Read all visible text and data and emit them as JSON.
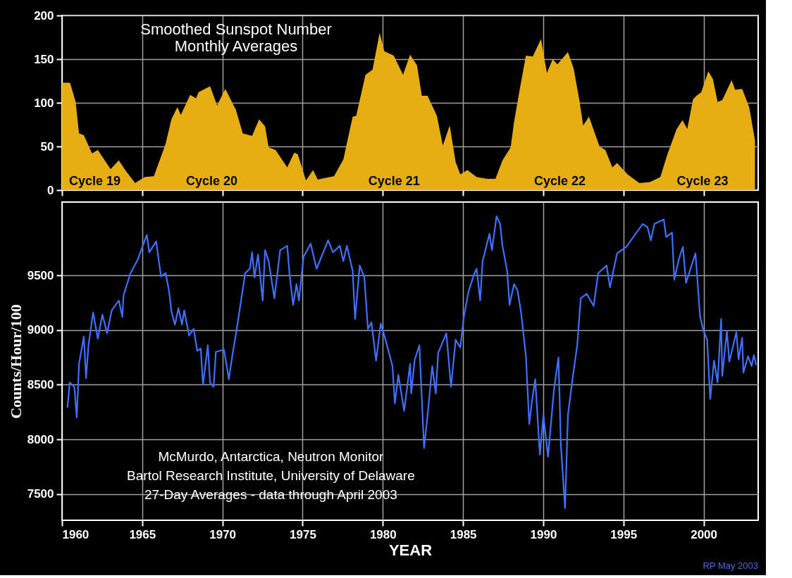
{
  "chart_data": [
    {
      "type": "area",
      "title": "Smoothed Sunspot Number\nMonthly Averages",
      "x": [
        1960.0,
        1960.5,
        1960.85,
        1961.06,
        1961.36,
        1961.87,
        1962.23,
        1963.03,
        1963.54,
        1963.98,
        1964.56,
        1965.15,
        1965.73,
        1966.46,
        1966.82,
        1967.19,
        1967.41,
        1967.99,
        1968.36,
        1968.51,
        1969.23,
        1969.67,
        1970.18,
        1970.84,
        1971.27,
        1971.85,
        1972.29,
        1972.66,
        1972.88,
        1973.31,
        1974.04,
        1974.48,
        1974.7,
        1975.21,
        1975.65,
        1975.94,
        1976.96,
        1977.54,
        1978.12,
        1978.34,
        1978.92,
        1979.36,
        1979.8,
        1980.09,
        1980.68,
        1981.26,
        1981.7,
        1982.13,
        1982.43,
        1982.79,
        1983.37,
        1983.74,
        1984.17,
        1984.54,
        1984.83,
        1985.27,
        1985.85,
        1986.51,
        1987.02,
        1987.46,
        1987.97,
        1988.18,
        1988.55,
        1988.92,
        1989.35,
        1989.86,
        1990.23,
        1990.59,
        1990.88,
        1991.54,
        1991.9,
        1992.27,
        1992.49,
        1992.85,
        1993.51,
        1993.87,
        1994.31,
        1994.6,
        1995.26,
        1995.99,
        1996.64,
        1997.3,
        1997.74,
        1998.32,
        1998.68,
        1998.98,
        1999.34,
        1999.56,
        1999.85,
        2000.29,
        2000.58,
        2000.87,
        2001.16,
        2001.75,
        2001.96,
        2002.4,
        2002.84,
        2003.2
      ],
      "series": [
        {
          "color": "#e6ae12",
          "values": [
            123,
            123,
            101,
            65,
            63,
            42,
            46,
            24,
            34,
            22,
            8,
            15,
            16,
            53,
            81,
            95,
            86,
            109,
            105,
            112,
            119,
            97,
            116,
            92,
            65,
            62,
            81,
            73,
            49,
            46,
            26,
            43,
            41,
            11,
            23,
            12,
            16,
            35,
            84,
            85,
            132,
            138,
            180,
            159,
            154,
            132,
            155,
            143,
            108,
            108,
            85,
            51,
            74,
            32,
            18,
            23,
            15,
            13,
            13,
            34,
            49,
            78,
            117,
            154,
            153,
            173,
            134,
            150,
            144,
            158,
            139,
            101,
            74,
            84,
            50,
            46,
            26,
            31,
            18,
            8,
            9,
            15,
            41,
            70,
            80,
            70,
            104,
            108,
            112,
            136,
            127,
            101,
            103,
            126,
            115,
            116,
            95,
            57
          ]
        }
      ],
      "annotations": [
        "Cycle 19",
        "Cycle 20",
        "Cycle 21",
        "Cycle 22",
        "Cycle 23"
      ],
      "xlim": [
        1960,
        2003.4
      ],
      "ylim": [
        0,
        200
      ],
      "xticks": [
        1960,
        1965,
        1970,
        1975,
        1980,
        1985,
        1990,
        1995,
        2000
      ],
      "yticks": [
        0,
        50,
        100,
        150,
        200
      ],
      "grid": true,
      "tick_labels": "y"
    },
    {
      "type": "line",
      "x": [
        1960.34,
        1960.48,
        1960.77,
        1960.92,
        1961.06,
        1961.36,
        1961.5,
        1961.65,
        1961.94,
        1962.23,
        1962.52,
        1962.81,
        1963.1,
        1963.54,
        1963.76,
        1963.84,
        1964.27,
        1964.71,
        1965.29,
        1965.44,
        1965.87,
        1966.17,
        1966.46,
        1966.68,
        1966.82,
        1967.04,
        1967.26,
        1967.48,
        1967.62,
        1967.92,
        1968.21,
        1968.43,
        1968.65,
        1968.79,
        1969.09,
        1969.23,
        1969.45,
        1969.59,
        1970.1,
        1970.4,
        1970.62,
        1970.84,
        1971.05,
        1971.42,
        1971.71,
        1971.85,
        1972.0,
        1972.22,
        1972.51,
        1972.66,
        1972.88,
        1973.24,
        1973.6,
        1974.04,
        1974.19,
        1974.41,
        1974.62,
        1974.77,
        1975.06,
        1975.5,
        1975.87,
        1976.59,
        1976.89,
        1977.32,
        1977.54,
        1977.76,
        1978.12,
        1978.27,
        1978.56,
        1978.85,
        1979.07,
        1979.29,
        1979.58,
        1979.87,
        1980.17,
        1980.6,
        1980.75,
        1980.97,
        1981.33,
        1981.7,
        1981.77,
        1981.99,
        1982.28,
        1982.57,
        1982.79,
        1983.08,
        1983.3,
        1983.45,
        1983.96,
        1984.25,
        1984.54,
        1984.83,
        1985.05,
        1985.34,
        1985.71,
        1985.85,
        1986.07,
        1986.22,
        1986.65,
        1986.8,
        1987.09,
        1987.31,
        1987.46,
        1987.75,
        1987.9,
        1988.18,
        1988.4,
        1988.62,
        1988.92,
        1989.13,
        1989.28,
        1989.5,
        1989.79,
        1990.01,
        1990.3,
        1990.66,
        1990.95,
        1991.1,
        1991.36,
        1991.54,
        1991.83,
        1992.12,
        1992.34,
        1992.71,
        1993.14,
        1993.43,
        1993.95,
        1994.16,
        1994.6,
        1995.18,
        1995.62,
        1996.2,
        1996.5,
        1996.71,
        1996.93,
        1997.52,
        1997.66,
        1998.03,
        1998.17,
        1998.46,
        1998.71,
        1998.9,
        1999.49,
        1999.78,
        2000.0,
        2000.22,
        2000.41,
        2000.65,
        2000.87,
        2001.09,
        2001.16,
        2001.45,
        2001.6,
        2002.04,
        2002.18,
        2002.4,
        2002.48,
        2002.77,
        2002.99,
        2003.13,
        2003.28
      ],
      "series": [
        {
          "color": "#3f6fff",
          "values": [
            8290,
            8520,
            8480,
            8200,
            8690,
            8940,
            8560,
            8860,
            9160,
            8920,
            9140,
            8970,
            9180,
            9270,
            9120,
            9320,
            9520,
            9640,
            9870,
            9710,
            9810,
            9490,
            9520,
            9350,
            9170,
            9050,
            9200,
            9050,
            9180,
            8950,
            9010,
            8810,
            8830,
            8500,
            8860,
            8520,
            8480,
            8800,
            8820,
            8550,
            8770,
            8960,
            9160,
            9520,
            9560,
            9710,
            9480,
            9690,
            9270,
            9730,
            9630,
            9290,
            9730,
            9770,
            9500,
            9230,
            9420,
            9270,
            9670,
            9790,
            9560,
            9820,
            9710,
            9770,
            9630,
            9770,
            9540,
            9100,
            9590,
            9480,
            9010,
            9070,
            8720,
            9060,
            8910,
            8670,
            8330,
            8590,
            8260,
            8690,
            8420,
            8730,
            8860,
            7920,
            8220,
            8670,
            8420,
            8790,
            8970,
            8480,
            8910,
            8840,
            9120,
            9350,
            9520,
            9560,
            9270,
            9630,
            9880,
            9730,
            10040,
            9970,
            9770,
            9540,
            9230,
            9420,
            9360,
            9160,
            8760,
            8140,
            8330,
            8550,
            7860,
            8220,
            7840,
            8440,
            8750,
            7950,
            7370,
            8220,
            8560,
            8860,
            9290,
            9330,
            9220,
            9520,
            9590,
            9390,
            9700,
            9760,
            9850,
            9970,
            9940,
            9820,
            9970,
            10010,
            9850,
            9890,
            9460,
            9650,
            9760,
            9430,
            9700,
            9120,
            8990,
            8910,
            8370,
            8720,
            8520,
            9100,
            8580,
            8990,
            8710,
            8980,
            8730,
            8930,
            8610,
            8760,
            8670,
            8770,
            8680
          ]
        }
      ],
      "annotations": [
        "McMurdo, Antarctica, Neutron Monitor",
        "Bartol Research Institute, University of Delaware",
        "27-Day Averages - data through April 2003",
        "RP May 2003"
      ],
      "xlabel": "YEAR",
      "ylabel": "Counts/Hour/100",
      "xlim": [
        1960,
        2003.4
      ],
      "ylim": [
        7260,
        10170
      ],
      "xticks": [
        1960,
        1965,
        1970,
        1975,
        1980,
        1985,
        1990,
        1995,
        2000
      ],
      "yticks": [
        7500,
        8000,
        8500,
        9000,
        9500
      ],
      "grid": true
    }
  ]
}
